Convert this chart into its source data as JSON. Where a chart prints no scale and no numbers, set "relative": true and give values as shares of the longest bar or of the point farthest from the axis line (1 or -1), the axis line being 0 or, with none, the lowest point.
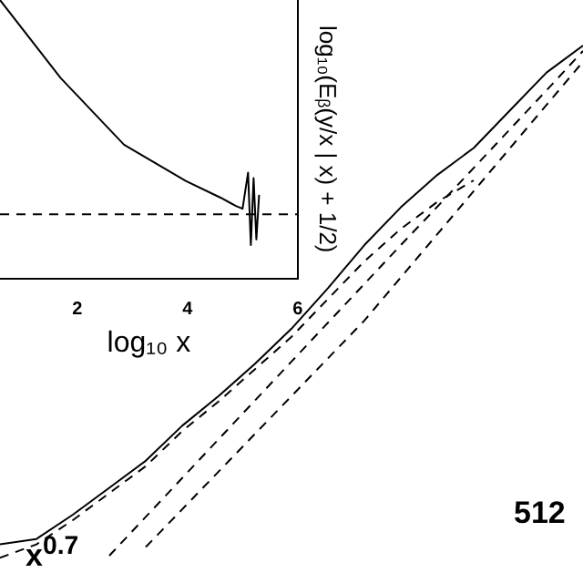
{
  "chart_data": [
    {
      "type": "line",
      "relative": true,
      "tick_labels": false,
      "categories": [
        null,
        null,
        null,
        null,
        null,
        null,
        null,
        null,
        null,
        null,
        null,
        null,
        null,
        null,
        null,
        null,
        null
      ],
      "series": [
        {
          "color": "#000000",
          "line_style": "solid",
          "values": [
            0.075,
            0.085,
            0.13,
            0.18,
            0.23,
            0.295,
            0.35,
            0.41,
            0.475,
            0.55,
            0.63,
            0.7,
            0.76,
            0.81,
            0.88,
            0.95,
            1
          ]
        },
        {
          "color": "#000000",
          "line_style": "dashed",
          "values": [
            0.05,
            0.075,
            0.12,
            0.17,
            0.22,
            0.285,
            0.34,
            0.4,
            0.46,
            0.53,
            0.6,
            0.66,
            0.71,
            0.75,
            null,
            null,
            null
          ]
        },
        {
          "color": "#000000",
          "line_style": "dashed",
          "values": [
            null,
            null,
            null,
            0.054,
            0.126,
            0.198,
            0.27,
            0.342,
            0.414,
            0.486,
            0.558,
            0.63,
            0.701,
            0.773,
            0.845,
            0.917,
            0.99
          ]
        },
        {
          "color": "#000000",
          "line_style": "dashed",
          "values": [
            null,
            null,
            null,
            null,
            0.07,
            0.14,
            0.21,
            0.28,
            0.35,
            0.42,
            0.49,
            0.57,
            0.65,
            0.73,
            0.81,
            0.89,
            0.97
          ]
        }
      ],
      "annotations": [
        "x$^{0.7}$",
        "512"
      ]
    },
    {
      "type": "line",
      "relative": true,
      "tick_labels": "x",
      "xlim": [
        0.6,
        6
      ],
      "xticks": [
        2,
        4,
        6
      ],
      "xlabel": "log₁₀ x",
      "ylabel": "log₁₀(Eᵦ(y/x | x) + 1/2)",
      "series": [
        {
          "color": "#000000",
          "x": [
            0.6,
            1.7,
            2.85,
            3.97,
            4.6,
            4.88,
            5.0,
            5.1,
            5.15,
            5.2,
            5.25,
            5.3
          ],
          "values": [
            1,
            0.72,
            0.48,
            0.35,
            0.29,
            0.26,
            0.25,
            0.38,
            0.12,
            0.36,
            0.14,
            0.3
          ]
        }
      ],
      "ref_lines": [
        {
          "axis": "y",
          "value": 0.23,
          "line_style": "dashed"
        }
      ]
    }
  ]
}
